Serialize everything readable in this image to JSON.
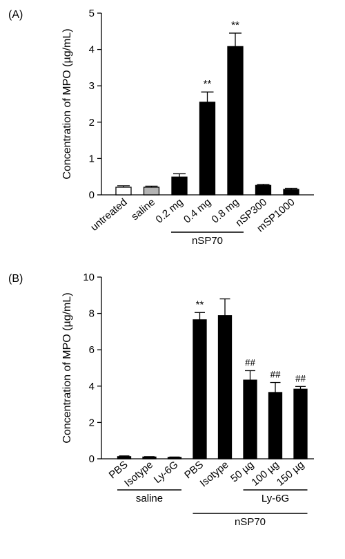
{
  "colors": {
    "black": "#000000",
    "gray": "#b4b4b4",
    "white": "#ffffff"
  },
  "chart_data": [
    {
      "panel": "(A)",
      "type": "bar",
      "ylabel": "Concentration of MPO (µg/mL)",
      "ylim": [
        0,
        5
      ],
      "yticks": [
        "0",
        "1",
        "2",
        "3",
        "4",
        "5"
      ],
      "grid": false,
      "categories": [
        "untreated",
        "saline",
        "0.2 mg",
        "0.4 mg",
        "0.8 mg",
        "nSP300",
        "mSP1000"
      ],
      "values": [
        0.21,
        0.21,
        0.49,
        2.55,
        4.08,
        0.26,
        0.15
      ],
      "errors": [
        0.04,
        0.03,
        0.09,
        0.28,
        0.37,
        0.03,
        0.03
      ],
      "fills": [
        "white",
        "gray",
        "black",
        "black",
        "black",
        "black",
        "black"
      ],
      "annotations": [
        "",
        "",
        "",
        "**",
        "**",
        "",
        ""
      ],
      "groups": [
        {
          "label": "nSP70",
          "from": 2,
          "to": 4
        }
      ]
    },
    {
      "panel": "(B)",
      "type": "bar",
      "ylabel": "Concentration of MPO (µg/mL)",
      "ylim": [
        0,
        10
      ],
      "yticks": [
        "0",
        "2",
        "4",
        "6",
        "8",
        "10"
      ],
      "grid": false,
      "categories": [
        "PBS",
        "Isotype",
        "Ly-6G",
        "PBS",
        "Isotype",
        "50 µg",
        "100 µg",
        "150 µg"
      ],
      "values": [
        0.12,
        0.1,
        0.08,
        7.65,
        7.88,
        4.33,
        3.65,
        3.83
      ],
      "errors": [
        0.04,
        0.02,
        0.02,
        0.4,
        0.92,
        0.52,
        0.55,
        0.15
      ],
      "fills": [
        "black",
        "black",
        "black",
        "black",
        "black",
        "black",
        "black",
        "black"
      ],
      "annotations": [
        "",
        "",
        "",
        "**",
        "",
        "##",
        "##",
        "##"
      ],
      "groups": [
        {
          "label": "saline",
          "from": 0,
          "to": 2
        },
        {
          "label": "Ly-6G",
          "from": 5,
          "to": 7
        },
        {
          "label": "nSP70",
          "from": 3,
          "to": 7
        }
      ]
    }
  ]
}
